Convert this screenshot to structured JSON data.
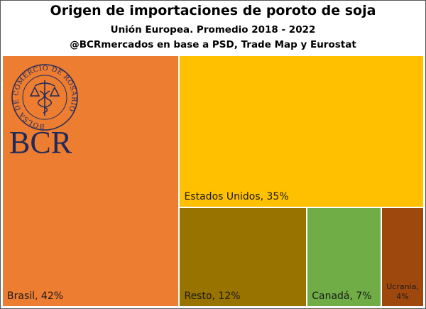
{
  "chart_data": {
    "type": "treemap",
    "title": "Origen de importaciones de poroto de soja",
    "subtitle": "Unión Europea. Promedio 2018 - 2022",
    "source": "@BCRmercados en base a PSD, Trade Map y Eurostat",
    "categories": [
      "Brasil",
      "Estados Unidos",
      "Resto",
      "Canadá",
      "Ucrania"
    ],
    "values": [
      42,
      35,
      12,
      7,
      4
    ],
    "value_labels": [
      "Brasil, 42%",
      "Estados Unidos, 35%",
      "Resto, 12%",
      "Canadá, 7%",
      "Ucrania, 4%"
    ],
    "colors": [
      "#ED7D31",
      "#FFC000",
      "#997300",
      "#70AD47",
      "#9E480E"
    ]
  },
  "logo": {
    "ring": "BOLSA DE COMERCIO DE ROSARIO",
    "text": "BCR"
  }
}
